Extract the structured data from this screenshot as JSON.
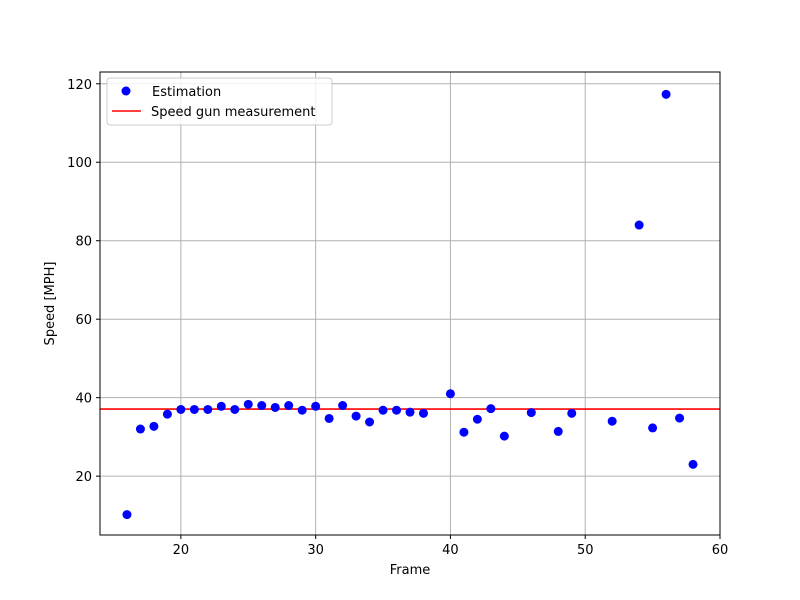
{
  "chart_data": {
    "type": "scatter",
    "xlabel": "Frame",
    "ylabel": "Speed [MPH]",
    "xlim": [
      14,
      60
    ],
    "ylim": [
      5,
      123
    ],
    "xticks": [
      20,
      30,
      40,
      50,
      60
    ],
    "yticks": [
      20,
      40,
      60,
      80,
      100,
      120
    ],
    "grid": true,
    "legend_position": "top-left",
    "series": [
      {
        "name": "Estimation",
        "kind": "scatter",
        "color": "#0000ff",
        "points": [
          {
            "x": 16,
            "y": 10.2
          },
          {
            "x": 17,
            "y": 32.0
          },
          {
            "x": 18,
            "y": 32.7
          },
          {
            "x": 19,
            "y": 35.8
          },
          {
            "x": 20,
            "y": 37.0
          },
          {
            "x": 21,
            "y": 37.0
          },
          {
            "x": 22,
            "y": 37.0
          },
          {
            "x": 23,
            "y": 37.8
          },
          {
            "x": 24,
            "y": 37.0
          },
          {
            "x": 25,
            "y": 38.3
          },
          {
            "x": 26,
            "y": 38.0
          },
          {
            "x": 27,
            "y": 37.5
          },
          {
            "x": 28,
            "y": 38.0
          },
          {
            "x": 29,
            "y": 36.8
          },
          {
            "x": 30,
            "y": 37.8
          },
          {
            "x": 31,
            "y": 34.7
          },
          {
            "x": 32,
            "y": 38.0
          },
          {
            "x": 33,
            "y": 35.3
          },
          {
            "x": 34,
            "y": 33.8
          },
          {
            "x": 35,
            "y": 36.8
          },
          {
            "x": 36,
            "y": 36.8
          },
          {
            "x": 37,
            "y": 36.3
          },
          {
            "x": 38,
            "y": 36.0
          },
          {
            "x": 40,
            "y": 41.0
          },
          {
            "x": 41,
            "y": 31.2
          },
          {
            "x": 42,
            "y": 34.5
          },
          {
            "x": 43,
            "y": 37.2
          },
          {
            "x": 44,
            "y": 30.2
          },
          {
            "x": 46,
            "y": 36.2
          },
          {
            "x": 48,
            "y": 31.4
          },
          {
            "x": 49,
            "y": 36.0
          },
          {
            "x": 52,
            "y": 34.0
          },
          {
            "x": 54,
            "y": 84.0
          },
          {
            "x": 55,
            "y": 32.3
          },
          {
            "x": 56,
            "y": 117.3
          },
          {
            "x": 57,
            "y": 34.8
          },
          {
            "x": 58,
            "y": 23.0
          }
        ]
      },
      {
        "name": "Speed gun measurement",
        "kind": "hline",
        "color": "#ff0000",
        "y": 37.1
      }
    ]
  }
}
